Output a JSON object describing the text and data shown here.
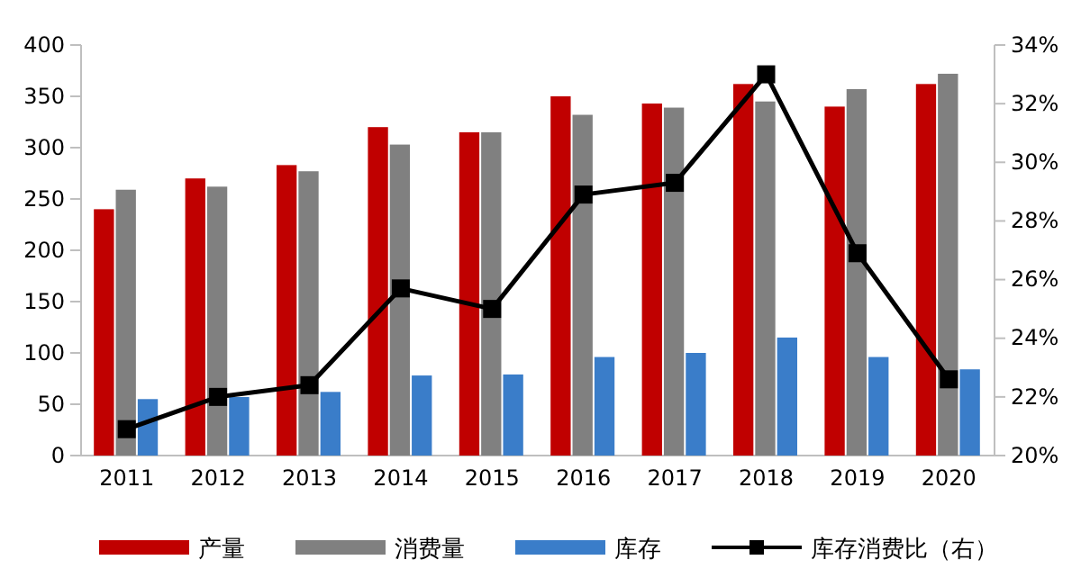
{
  "chart_data": {
    "type": "bar",
    "categories": [
      "2011",
      "2012",
      "2013",
      "2014",
      "2015",
      "2016",
      "2017",
      "2018",
      "2019",
      "2020"
    ],
    "series": [
      {
        "name": "产量",
        "color": "#c00000",
        "values": [
          240,
          270,
          283,
          320,
          315,
          350,
          343,
          362,
          340,
          362
        ]
      },
      {
        "name": "消费量",
        "color": "#808080",
        "values": [
          259,
          262,
          277,
          303,
          315,
          332,
          339,
          345,
          357,
          372
        ]
      },
      {
        "name": "库存",
        "color": "#3a7dc9",
        "values": [
          55,
          57,
          62,
          78,
          79,
          96,
          100,
          115,
          96,
          84
        ]
      },
      {
        "name": "库存消费比（右）",
        "type": "line",
        "axis": "y2",
        "color": "#000000",
        "marker": "square",
        "values": [
          20.9,
          22.0,
          22.4,
          25.7,
          25.0,
          28.9,
          29.3,
          33.0,
          26.9,
          22.6
        ]
      }
    ],
    "ylim": [
      0,
      400
    ],
    "yticks": [
      0,
      50,
      100,
      150,
      200,
      250,
      300,
      350,
      400
    ],
    "y2lim": [
      20,
      34
    ],
    "y2ticks": [
      {
        "value": 20,
        "label": "20%"
      },
      {
        "value": 22,
        "label": "22%"
      },
      {
        "value": 24,
        "label": "24%"
      },
      {
        "value": 26,
        "label": "26%"
      },
      {
        "value": 28,
        "label": "28%"
      },
      {
        "value": 30,
        "label": "30%"
      },
      {
        "value": 32,
        "label": "32%"
      },
      {
        "value": 34,
        "label": "34%"
      }
    ],
    "grid": false,
    "legend": "bottom"
  }
}
